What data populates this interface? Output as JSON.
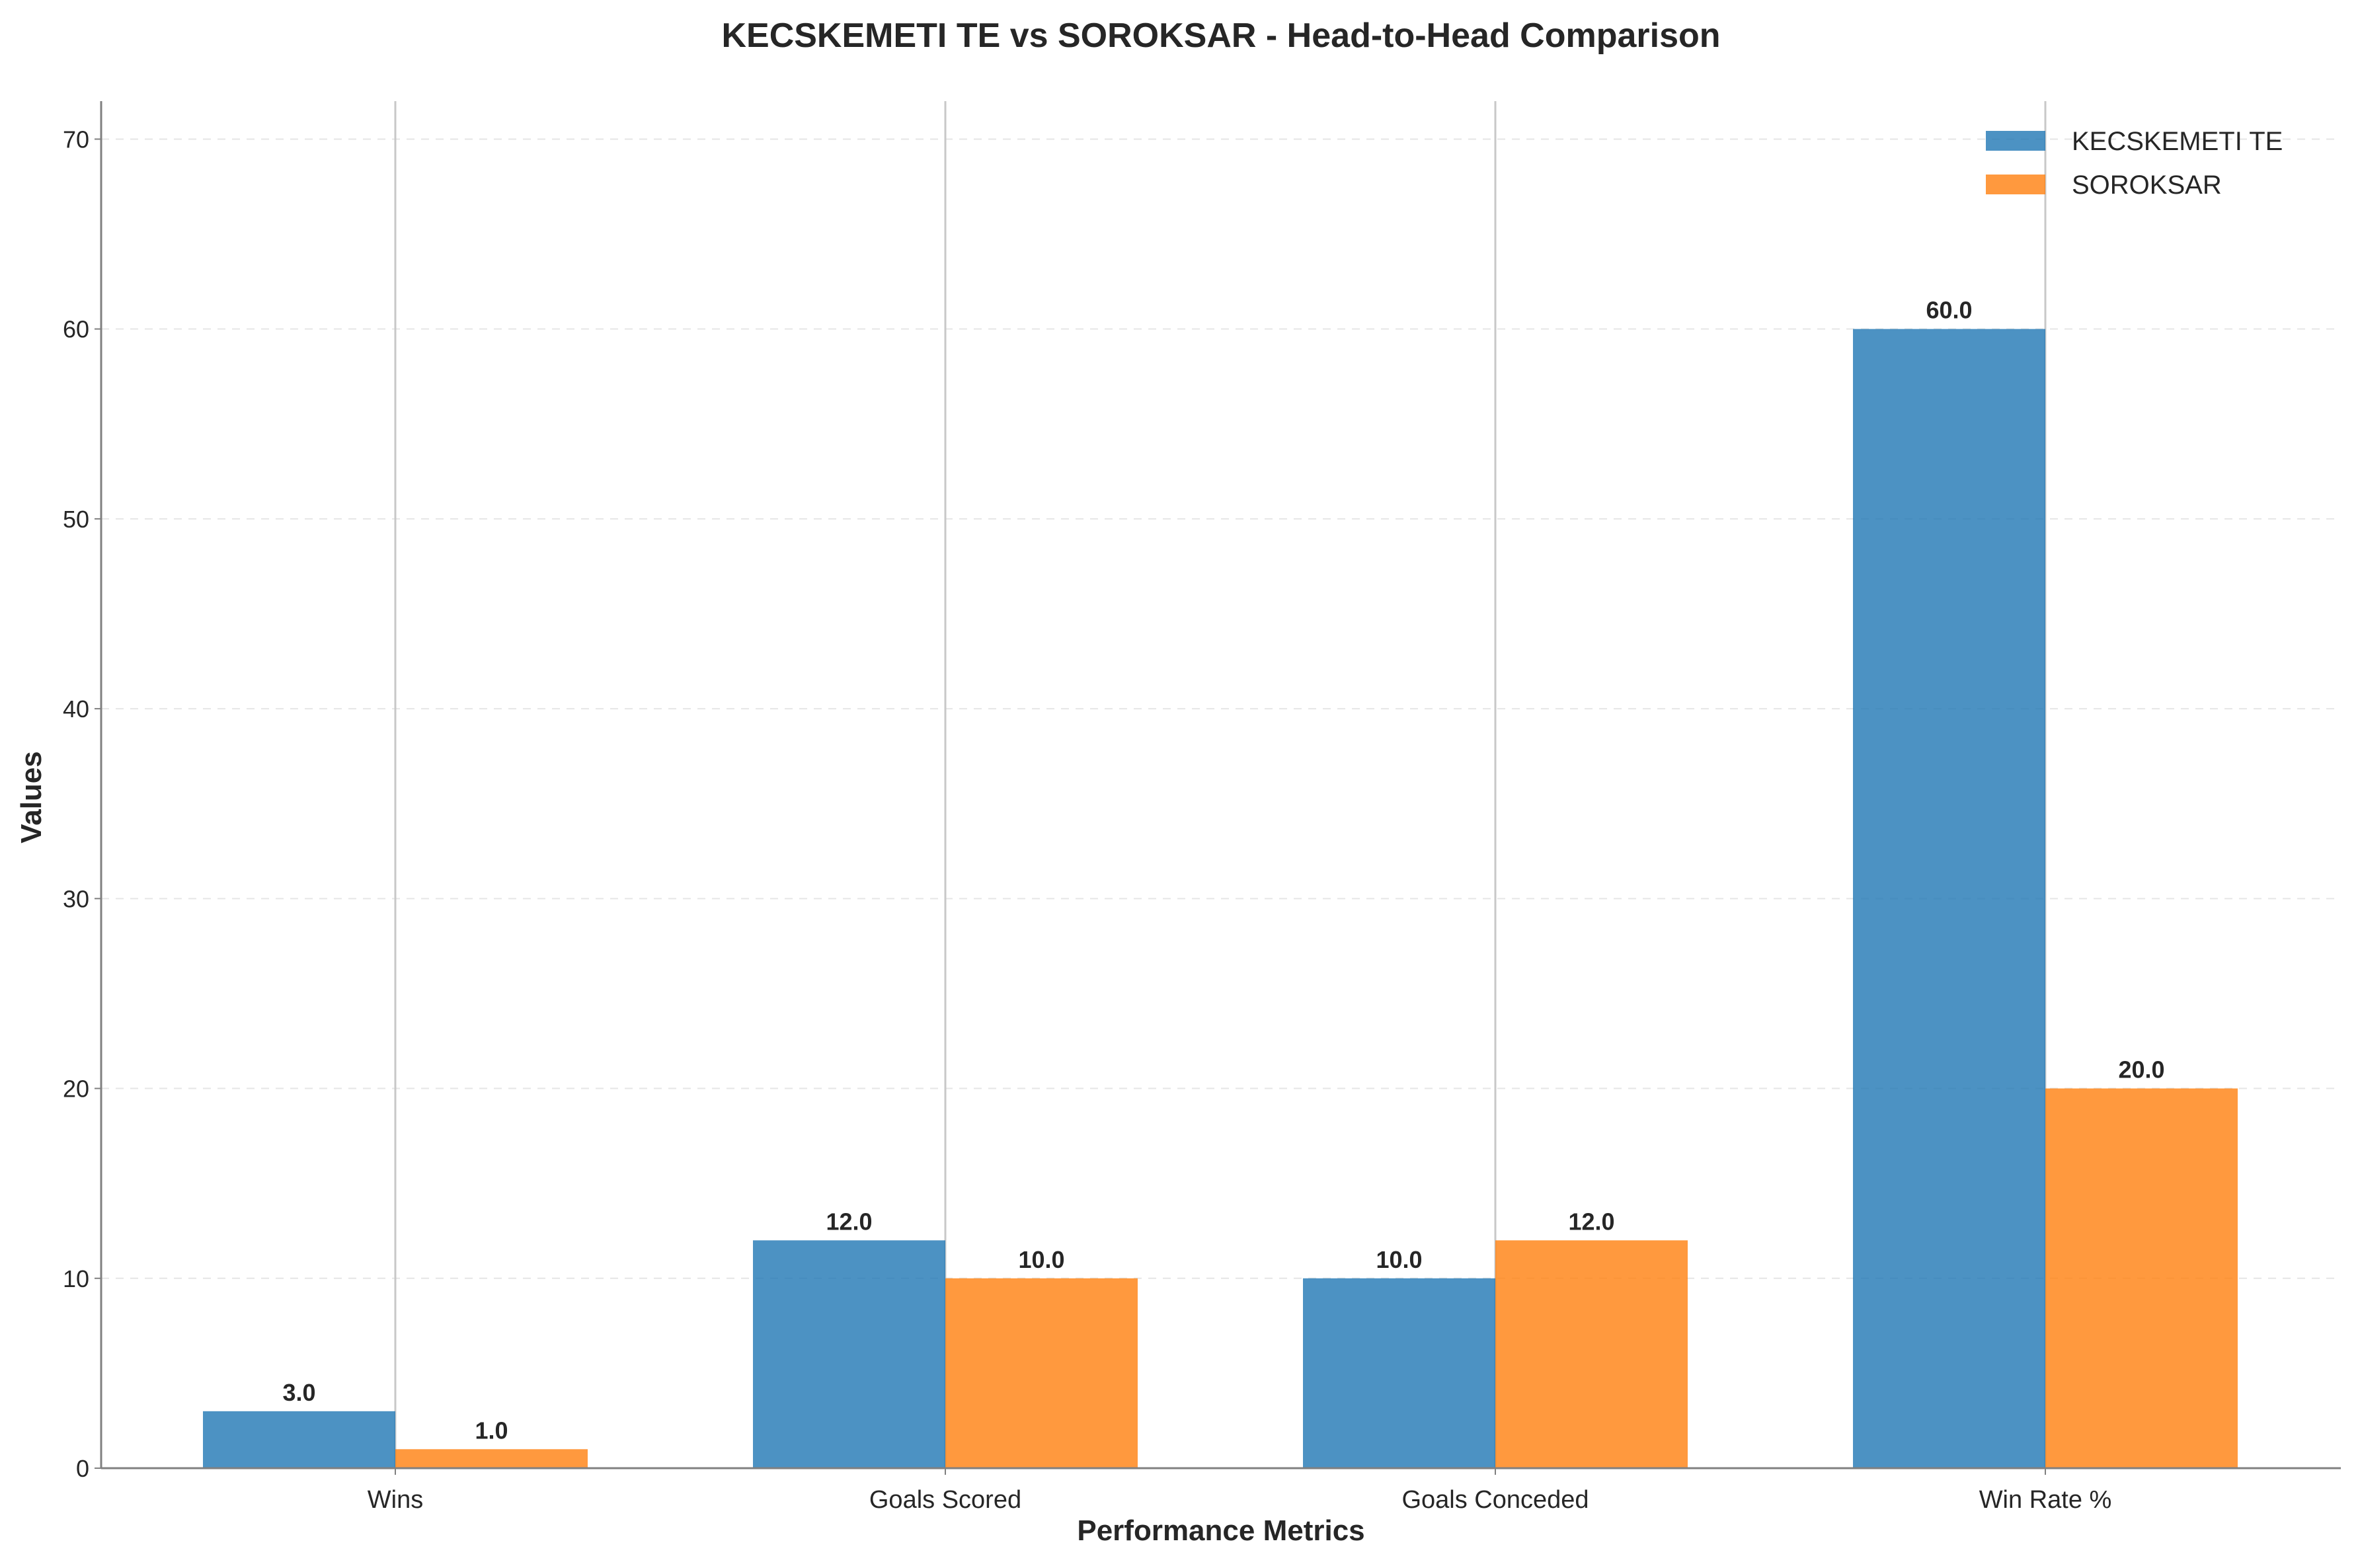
{
  "chart_data": {
    "type": "bar",
    "title": "KECSKEMETI TE vs SOROKSAR - Head-to-Head Comparison",
    "xlabel": "Performance Metrics",
    "ylabel": "Values",
    "categories": [
      "Wins",
      "Goals Scored",
      "Goals Conceded",
      "Win Rate %"
    ],
    "series": [
      {
        "name": "KECSKEMETI TE",
        "values": [
          3.0,
          12.0,
          10.0,
          60.0
        ],
        "color": "#1f77b4",
        "labels": [
          "3.0",
          "12.0",
          "10.0",
          "60.0"
        ]
      },
      {
        "name": "SOROKSAR",
        "values": [
          1.0,
          10.0,
          12.0,
          20.0
        ],
        "color": "#ff7f0e",
        "labels": [
          "1.0",
          "10.0",
          "12.0",
          "20.0"
        ]
      }
    ],
    "ylim": [
      0,
      72
    ],
    "yticks": [
      0,
      10,
      20,
      30,
      40,
      50,
      60,
      70
    ],
    "ytick_labels": [
      "0",
      "10",
      "20",
      "30",
      "40",
      "50",
      "60",
      "70"
    ],
    "grid": "y-dashed",
    "legend": "top-right"
  }
}
